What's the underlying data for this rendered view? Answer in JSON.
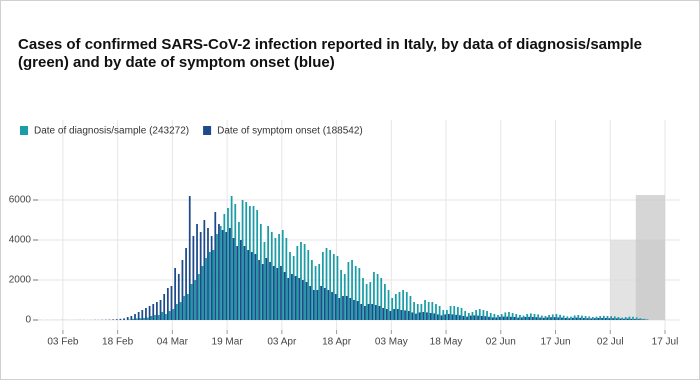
{
  "chart_data": {
    "type": "bar",
    "title": [
      "Cases of confirmed SARS-CoV-2 infection reported in Italy, by data of diagnosis/sample",
      "(green) and by date of symptom onset (blue)"
    ],
    "x": [
      "28 Jan",
      "29 Jan",
      "30 Jan",
      "31 Jan",
      "01 Feb",
      "02 Feb",
      "03 Feb",
      "04 Feb",
      "05 Feb",
      "06 Feb",
      "07 Feb",
      "08 Feb",
      "09 Feb",
      "10 Feb",
      "11 Feb",
      "12 Feb",
      "13 Feb",
      "14 Feb",
      "15 Feb",
      "16 Feb",
      "17 Feb",
      "18 Feb",
      "19 Feb",
      "20 Feb",
      "21 Feb",
      "22 Feb",
      "23 Feb",
      "24 Feb",
      "25 Feb",
      "26 Feb",
      "27 Feb",
      "28 Feb",
      "29 Feb",
      "01 Mar",
      "02 Mar",
      "03 Mar",
      "04 Mar",
      "05 Mar",
      "06 Mar",
      "07 Mar",
      "08 Mar",
      "09 Mar",
      "10 Mar",
      "11 Mar",
      "12 Mar",
      "13 Mar",
      "14 Mar",
      "15 Mar",
      "16 Mar",
      "17 Mar",
      "18 Mar",
      "19 Mar",
      "20 Mar",
      "21 Mar",
      "22 Mar",
      "23 Mar",
      "24 Mar",
      "25 Mar",
      "26 Mar",
      "27 Mar",
      "28 Mar",
      "29 Mar",
      "30 Mar",
      "31 Mar",
      "01 Apr",
      "02 Apr",
      "03 Apr",
      "04 Apr",
      "05 Apr",
      "06 Apr",
      "07 Apr",
      "08 Apr",
      "09 Apr",
      "10 Apr",
      "11 Apr",
      "12 Apr",
      "13 Apr",
      "14 Apr",
      "15 Apr",
      "16 Apr",
      "17 Apr",
      "18 Apr",
      "19 Apr",
      "20 Apr",
      "21 Apr",
      "22 Apr",
      "23 Apr",
      "24 Apr",
      "25 Apr",
      "26 Apr",
      "27 Apr",
      "28 Apr",
      "29 Apr",
      "30 Apr",
      "01 May",
      "02 May",
      "03 May",
      "04 May",
      "05 May",
      "06 May",
      "07 May",
      "08 May",
      "09 May",
      "10 May",
      "11 May",
      "12 May",
      "13 May",
      "14 May",
      "15 May",
      "16 May",
      "17 May",
      "18 May",
      "19 May",
      "20 May",
      "21 May",
      "22 May",
      "23 May",
      "24 May",
      "25 May",
      "26 May",
      "27 May",
      "28 May",
      "29 May",
      "30 May",
      "31 May",
      "01 Jun",
      "02 Jun",
      "03 Jun",
      "04 Jun",
      "05 Jun",
      "06 Jun",
      "07 Jun",
      "08 Jun",
      "09 Jun",
      "10 Jun",
      "11 Jun",
      "12 Jun",
      "13 Jun",
      "14 Jun",
      "15 Jun",
      "16 Jun",
      "17 Jun",
      "18 Jun",
      "19 Jun",
      "20 Jun",
      "21 Jun",
      "22 Jun",
      "23 Jun",
      "24 Jun",
      "25 Jun",
      "26 Jun",
      "27 Jun",
      "28 Jun",
      "29 Jun",
      "30 Jun",
      "01 Jul",
      "02 Jul",
      "03 Jul",
      "04 Jul",
      "05 Jul",
      "06 Jul",
      "07 Jul",
      "08 Jul",
      "09 Jul",
      "10 Jul",
      "11 Jul",
      "12 Jul",
      "13 Jul",
      "14 Jul",
      "15 Jul",
      "16 Jul",
      "17 Jul"
    ],
    "series": [
      {
        "name": "Date of diagnosis/sample (243272)",
        "color": "#1a9da6",
        "values": [
          0,
          0,
          0,
          0,
          3,
          0,
          2,
          0,
          0,
          0,
          0,
          0,
          0,
          0,
          0,
          0,
          0,
          0,
          0,
          0,
          0,
          0,
          0,
          0,
          20,
          60,
          80,
          90,
          100,
          120,
          200,
          250,
          250,
          400,
          300,
          450,
          550,
          800,
          900,
          1200,
          1300,
          1800,
          2000,
          2300,
          2700,
          3100,
          3400,
          3500,
          4300,
          4700,
          5300,
          5600,
          6200,
          5800,
          4900,
          6000,
          5900,
          5700,
          5700,
          5500,
          4800,
          3900,
          4700,
          4400,
          4100,
          4300,
          4500,
          4100,
          3400,
          3200,
          3700,
          3900,
          3800,
          3500,
          3000,
          2700,
          2800,
          3400,
          3600,
          3500,
          3300,
          3200,
          2500,
          2300,
          2900,
          3000,
          2700,
          2600,
          2100,
          1800,
          1900,
          2400,
          2300,
          2100,
          1800,
          1500,
          1100,
          1300,
          1400,
          1500,
          1400,
          1200,
          900,
          800,
          800,
          1000,
          900,
          900,
          800,
          700,
          500,
          500,
          700,
          700,
          650,
          600,
          450,
          350,
          400,
          500,
          550,
          500,
          450,
          350,
          300,
          250,
          300,
          380,
          400,
          350,
          300,
          250,
          220,
          300,
          330,
          300,
          280,
          220,
          200,
          250,
          280,
          300,
          260,
          220,
          180,
          170,
          230,
          250,
          220,
          200,
          180,
          150,
          170,
          200,
          210,
          200,
          190,
          180,
          150,
          120,
          150,
          170,
          160,
          130,
          90,
          60,
          30,
          null,
          null,
          null,
          null,
          null
        ]
      },
      {
        "name": "Date of symptom onset (188542)",
        "color": "#1c4a8a",
        "values": [
          5,
          0,
          3,
          2,
          3,
          2,
          5,
          4,
          3,
          2,
          5,
          6,
          4,
          3,
          5,
          10,
          8,
          12,
          15,
          20,
          30,
          40,
          60,
          80,
          150,
          200,
          300,
          400,
          500,
          600,
          700,
          800,
          900,
          1000,
          1300,
          1600,
          1700,
          2600,
          2300,
          3000,
          3600,
          6200,
          4200,
          4800,
          4400,
          5000,
          4600,
          4200,
          5400,
          4800,
          4500,
          4400,
          4600,
          4100,
          3700,
          4000,
          3700,
          3500,
          3400,
          3300,
          3000,
          2800,
          3100,
          2900,
          2700,
          2600,
          2700,
          2400,
          2100,
          2300,
          2200,
          2100,
          2000,
          1900,
          1700,
          1500,
          1500,
          1700,
          1600,
          1500,
          1400,
          1300,
          1100,
          1200,
          1200,
          1100,
          1000,
          950,
          800,
          700,
          800,
          800,
          750,
          700,
          600,
          550,
          450,
          550,
          550,
          500,
          480,
          450,
          380,
          320,
          380,
          400,
          380,
          350,
          330,
          280,
          230,
          280,
          300,
          280,
          260,
          240,
          200,
          170,
          220,
          230,
          220,
          200,
          190,
          160,
          130,
          130,
          160,
          170,
          170,
          160,
          150,
          120,
          130,
          150,
          160,
          150,
          140,
          120,
          110,
          130,
          140,
          140,
          130,
          120,
          100,
          90,
          110,
          120,
          110,
          100,
          90,
          80,
          90,
          100,
          100,
          100,
          90,
          90,
          80,
          70,
          60,
          70,
          60,
          50,
          40,
          30,
          20,
          null,
          null,
          null,
          null,
          null
        ]
      }
    ],
    "xticks": [
      "03 Feb",
      "18 Feb",
      "04 Mar",
      "19 Mar",
      "03 Apr",
      "18 Apr",
      "03 May",
      "18 May",
      "02 Jun",
      "17 Jun",
      "02 Jul",
      "17 Jul"
    ],
    "ylim": [
      -500,
      10000
    ],
    "yticks": [
      0,
      2000,
      4000,
      6000
    ],
    "grid": true,
    "legend": "top-left",
    "shaded": [
      {
        "from": "02 Jul",
        "to": "17 Jul",
        "value": 4000,
        "color": "#d9d9d9"
      },
      {
        "from": "09 Jul",
        "to": "17 Jul",
        "value": 6250,
        "color": "#c8c8c8"
      }
    ]
  }
}
